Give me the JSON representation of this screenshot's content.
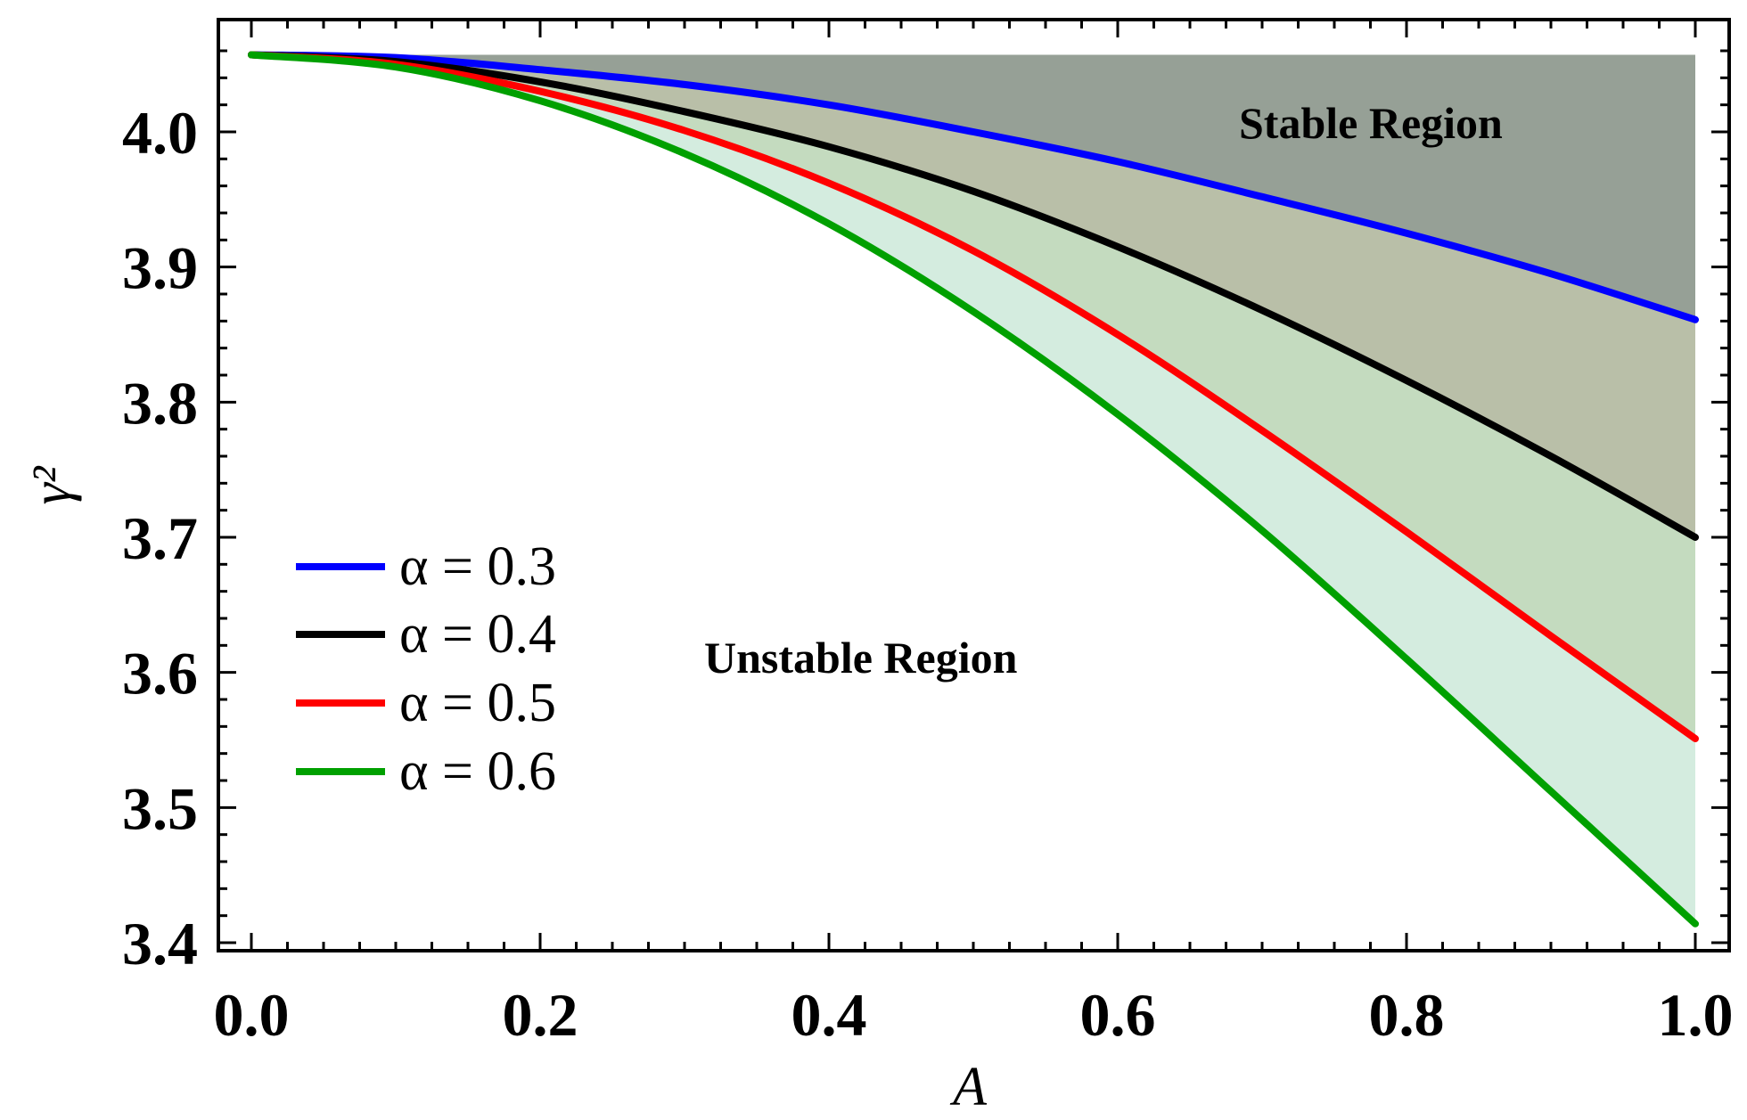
{
  "chart_data": {
    "type": "line",
    "title": "",
    "xlabel": "A",
    "ylabel": "γ²",
    "xlim": [
      0.0,
      1.0
    ],
    "ylim": [
      3.4,
      4.06
    ],
    "x_ticks": [
      0.0,
      0.2,
      0.4,
      0.6,
      0.8,
      1.0
    ],
    "x_tick_labels": [
      "0.0",
      "0.2",
      "0.4",
      "0.6",
      "0.8",
      "1.0"
    ],
    "y_ticks": [
      3.4,
      3.5,
      3.6,
      3.7,
      3.8,
      3.9,
      4.0
    ],
    "y_tick_labels": [
      "3.4",
      "3.5",
      "3.6",
      "3.7",
      "3.8",
      "3.9",
      "4.0"
    ],
    "x": [
      0.0,
      0.1,
      0.2,
      0.3,
      0.4,
      0.5,
      0.6,
      0.7,
      0.8,
      0.9,
      1.0
    ],
    "series": [
      {
        "name": "α = 0.3",
        "legend_label": "α = 0.3",
        "color": "#0000ff",
        "values": [
          4.057,
          4.055,
          4.046,
          4.035,
          4.02,
          4.0,
          3.978,
          3.952,
          3.925,
          3.895,
          3.861
        ]
      },
      {
        "name": "α = 0.4",
        "legend_label": "α = 0.4",
        "color": "#000000",
        "values": [
          4.057,
          4.052,
          4.037,
          4.015,
          3.989,
          3.956,
          3.915,
          3.868,
          3.816,
          3.76,
          3.7
        ]
      },
      {
        "name": "α = 0.5",
        "legend_label": "α = 0.5",
        "color": "#ff0000",
        "values": [
          4.057,
          4.05,
          4.03,
          4.001,
          3.962,
          3.912,
          3.85,
          3.779,
          3.704,
          3.627,
          3.551
        ]
      },
      {
        "name": "α = 0.6",
        "legend_label": "α = 0.6",
        "color": "#00a000",
        "values": [
          4.057,
          4.048,
          4.023,
          3.984,
          3.932,
          3.867,
          3.791,
          3.705,
          3.61,
          3.512,
          3.414
        ]
      }
    ],
    "shaded_regions": [
      {
        "between": [
          "top",
          "α = 0.3"
        ],
        "color": "#96a096"
      },
      {
        "between": [
          "α = 0.3",
          "α = 0.4"
        ],
        "color": "#b9bfa8"
      },
      {
        "between": [
          "α = 0.4",
          "α = 0.5"
        ],
        "color": "#c4dbbf"
      },
      {
        "between": [
          "α = 0.5",
          "α = 0.6"
        ],
        "color": "#d4ecdf"
      }
    ],
    "annotations": [
      {
        "name": "stable-region-label",
        "text": "Stable Region"
      },
      {
        "name": "unstable-region-label",
        "text": "Unstable Region"
      }
    ],
    "legend_position": "center-left",
    "grid": false
  }
}
